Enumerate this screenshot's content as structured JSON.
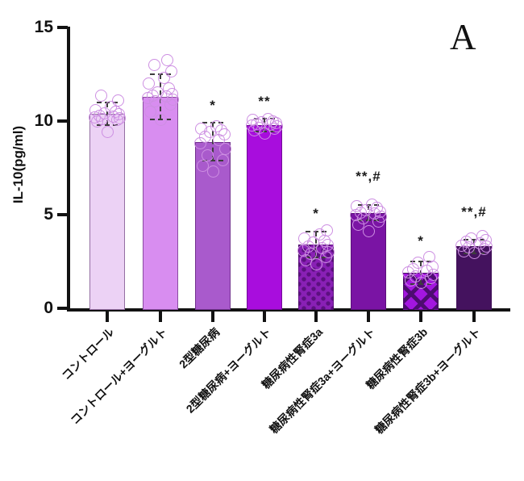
{
  "panel_label": "A",
  "chart_data": {
    "type": "bar",
    "title": "",
    "xlabel": "",
    "ylabel": "IL-10(pg/ml)",
    "ylim": [
      0,
      15
    ],
    "yticks": [
      0,
      5,
      10,
      15
    ],
    "grid": false,
    "legend": "none",
    "categories": [
      "コントロール",
      "コントロール+ヨーグルト",
      "2型糖尿病",
      "2型糖尿病+ヨーグルト",
      "糖尿病性腎症3a",
      "糖尿病性腎症3a+ヨーグルト",
      "糖尿病性腎症3b",
      "糖尿病性腎症3b+ヨーグルト"
    ],
    "values": [
      10.4,
      11.3,
      8.9,
      9.8,
      3.4,
      5.1,
      1.9,
      3.3
    ],
    "error_sd": [
      0.6,
      1.2,
      1.0,
      0.35,
      0.7,
      0.4,
      0.6,
      0.35
    ],
    "significance": [
      "",
      "",
      "*",
      "**",
      "*",
      "**,#",
      "*",
      "**,#"
    ],
    "colors": {
      "dot_outline": "#cd8fe2",
      "error_bar": "#3d3d3d",
      "axis": "#121212",
      "text": "#111111"
    },
    "groups": [
      {
        "label": "コントロール",
        "mean": 10.4,
        "sd": 0.6,
        "sig": "",
        "sig_anchor": 0,
        "fill": "#ecd2f5",
        "pattern": "solid",
        "pattern_color": "",
        "points": [
          9.4,
          10.0,
          10.05,
          10.1,
          10.15,
          10.2,
          10.25,
          10.3,
          10.35,
          10.4,
          10.5,
          10.6,
          10.75,
          11.1,
          11.35
        ]
      },
      {
        "label": "コントロール+ヨーグルト",
        "mean": 11.3,
        "sd": 1.2,
        "sig": "",
        "sig_anchor": 0,
        "fill": "#d88df0",
        "pattern": "solid",
        "pattern_color": "",
        "points": [
          10.05,
          10.5,
          10.9,
          11.05,
          11.15,
          11.25,
          11.3,
          11.35,
          11.45,
          11.55,
          11.75,
          12.0,
          12.3,
          12.65,
          13.0,
          13.25
        ]
      },
      {
        "label": "2型糖尿病",
        "mean": 8.9,
        "sd": 1.0,
        "sig": "*",
        "sig_anchor": 10.35,
        "fill": "#a95acc",
        "pattern": "solid",
        "pattern_color": "",
        "points": [
          7.3,
          7.6,
          7.9,
          8.15,
          8.5,
          8.8,
          9.0,
          9.15,
          9.3,
          9.4,
          9.5,
          9.6,
          9.7
        ]
      },
      {
        "label": "2型糖尿病+ヨーグルト",
        "mean": 9.8,
        "sd": 0.35,
        "sig": "**",
        "sig_anchor": 10.55,
        "fill": "#a80ddd",
        "pattern": "solid",
        "pattern_color": "",
        "points": [
          9.35,
          9.5,
          9.6,
          9.65,
          9.7,
          9.75,
          9.8,
          9.85,
          9.9,
          9.95,
          10.0,
          10.05,
          10.1
        ]
      },
      {
        "label": "糖尿病性腎症3a",
        "mean": 3.4,
        "sd": 0.7,
        "sig": "*",
        "sig_anchor": 4.55,
        "fill": "#8920b5",
        "pattern": "dots",
        "pattern_color": "#5c1080",
        "points": [
          2.35,
          2.55,
          2.75,
          2.9,
          3.0,
          3.1,
          3.2,
          3.3,
          3.4,
          3.5,
          3.6,
          3.75,
          3.95,
          4.15
        ]
      },
      {
        "label": "糖尿病性腎症3a+ヨーグルト",
        "mean": 5.1,
        "sd": 0.4,
        "sig": "**,#",
        "sig_anchor": 6.55,
        "fill": "#7a14a4",
        "pattern": "solid",
        "pattern_color": "",
        "points": [
          4.1,
          4.45,
          4.65,
          4.8,
          4.9,
          5.0,
          5.05,
          5.1,
          5.15,
          5.25,
          5.35,
          5.45,
          5.55
        ]
      },
      {
        "label": "糖尿病性腎症3b",
        "mean": 1.9,
        "sd": 0.6,
        "sig": "*",
        "sig_anchor": 3.1,
        "fill": "#a316e0",
        "pattern": "diamonds",
        "pattern_color": "#4d0c70",
        "points": [
          1.35,
          1.5,
          1.6,
          1.7,
          1.8,
          1.9,
          2.0,
          2.1,
          2.2,
          2.45,
          2.75
        ]
      },
      {
        "label": "糖尿病性腎症3b+ヨーグルト",
        "mean": 3.3,
        "sd": 0.35,
        "sig": "**,#",
        "sig_anchor": 4.65,
        "fill": "#44125e",
        "pattern": "solid",
        "pattern_color": "",
        "points": [
          2.95,
          3.05,
          3.15,
          3.25,
          3.3,
          3.35,
          3.45,
          3.55,
          3.65,
          3.75,
          3.85
        ]
      }
    ]
  }
}
